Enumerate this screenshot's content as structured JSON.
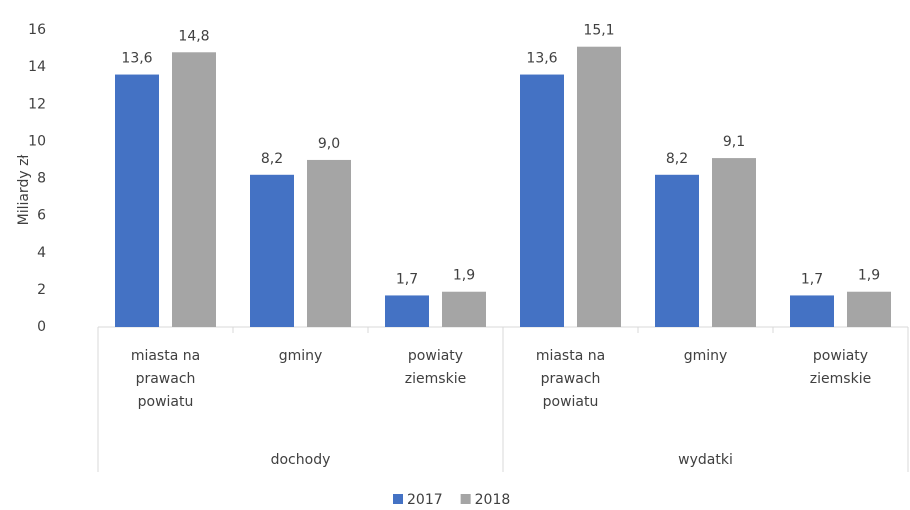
{
  "chart_data": {
    "type": "bar",
    "y_label": "Miliardy zł",
    "categories": [
      "miasta na prawach powiatu",
      "gminy",
      "powiaty ziemskie",
      "miasta na prawach powiatu",
      "gminy",
      "powiaty ziemskie"
    ],
    "groups": [
      "dochody",
      "wydatki"
    ],
    "series": [
      {
        "name": "2017",
        "color": "#4472c4",
        "values": [
          13.6,
          8.2,
          1.7,
          13.6,
          8.2,
          1.7
        ],
        "value_labels": [
          "13,6",
          "8,2",
          "1,7",
          "13,6",
          "8,2",
          "1,7"
        ]
      },
      {
        "name": "2018",
        "color": "#a5a5a5",
        "values": [
          14.8,
          9.0,
          1.9,
          15.1,
          9.1,
          1.9
        ],
        "value_labels": [
          "14,8",
          "9,0",
          "1,9",
          "15,1",
          "9,1",
          "1,9"
        ]
      }
    ],
    "ylim": [
      0,
      16
    ],
    "yticks": [
      0,
      2,
      4,
      6,
      8,
      10,
      12,
      14,
      16
    ],
    "grid": false,
    "legend": "bottom"
  }
}
